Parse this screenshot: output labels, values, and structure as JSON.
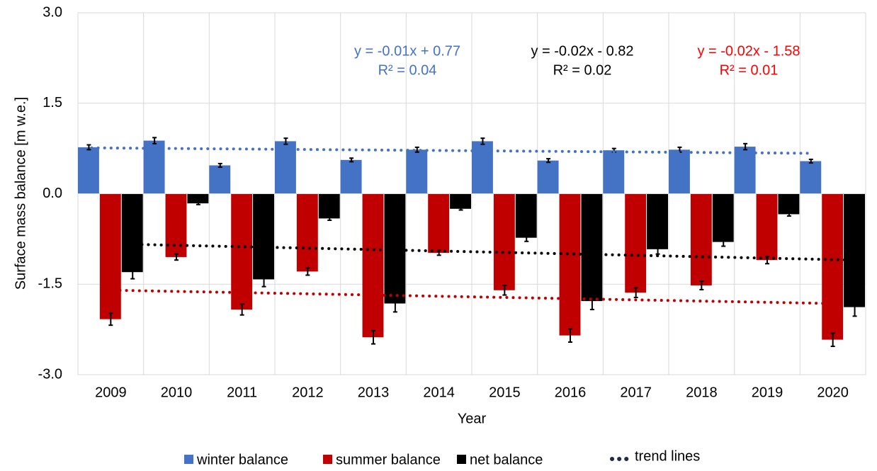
{
  "chart_data": {
    "type": "bar",
    "x_label": "Year",
    "y_label": "Surface mass balance [m w.e.]",
    "categories": [
      "2009",
      "2010",
      "2011",
      "2012",
      "2013",
      "2014",
      "2015",
      "2016",
      "2017",
      "2018",
      "2019",
      "2020"
    ],
    "series": [
      {
        "name": "winter balance",
        "color": "#4472c4",
        "values": [
          0.77,
          0.88,
          0.47,
          0.87,
          0.56,
          0.73,
          0.87,
          0.55,
          0.72,
          0.73,
          0.78,
          0.54
        ],
        "errors": [
          0.04,
          0.05,
          0.03,
          0.05,
          0.03,
          0.04,
          0.05,
          0.03,
          0.03,
          0.04,
          0.05,
          0.03
        ],
        "trend": [
          0.76,
          0.67
        ],
        "equation": [
          "y = -0.01x + 0.77",
          "R² = 0.04"
        ]
      },
      {
        "name": "summer balance",
        "color": "#c00000",
        "values": [
          -2.08,
          -1.05,
          -1.92,
          -1.29,
          -2.38,
          -0.98,
          -1.6,
          -2.35,
          -1.64,
          -1.52,
          -1.1,
          -2.42
        ],
        "errors": [
          0.1,
          0.05,
          0.09,
          0.06,
          0.11,
          0.04,
          0.08,
          0.11,
          0.08,
          0.07,
          0.06,
          0.11
        ],
        "trend": [
          -1.6,
          -1.82
        ],
        "equation": [
          "y = -0.02x - 1.58",
          "R² = 0.01"
        ],
        "equation_color": "#ff0000"
      },
      {
        "name": "net balance",
        "color": "#000000",
        "values": [
          -1.3,
          -0.16,
          -1.42,
          -0.41,
          -1.82,
          -0.25,
          -0.73,
          -1.78,
          -0.92,
          -0.8,
          -0.34,
          -1.88
        ],
        "errors": [
          0.11,
          0.02,
          0.12,
          0.03,
          0.14,
          0.02,
          0.06,
          0.14,
          0.08,
          0.07,
          0.03,
          0.15
        ],
        "trend": [
          -0.84,
          -1.1
        ],
        "equation": [
          "y = -0.02x - 0.82",
          "R² = 0.02"
        ]
      }
    ],
    "trend_legend": "trend lines",
    "ylim": [
      -3,
      3
    ],
    "yticks": [
      {
        "value": -3,
        "label": "-3.0"
      },
      {
        "value": -1.5,
        "label": "-1.5"
      },
      {
        "value": 0,
        "label": "0.0"
      },
      {
        "value": 1.5,
        "label": "1.5"
      },
      {
        "value": 3,
        "label": "3.0"
      }
    ],
    "grid": true
  }
}
